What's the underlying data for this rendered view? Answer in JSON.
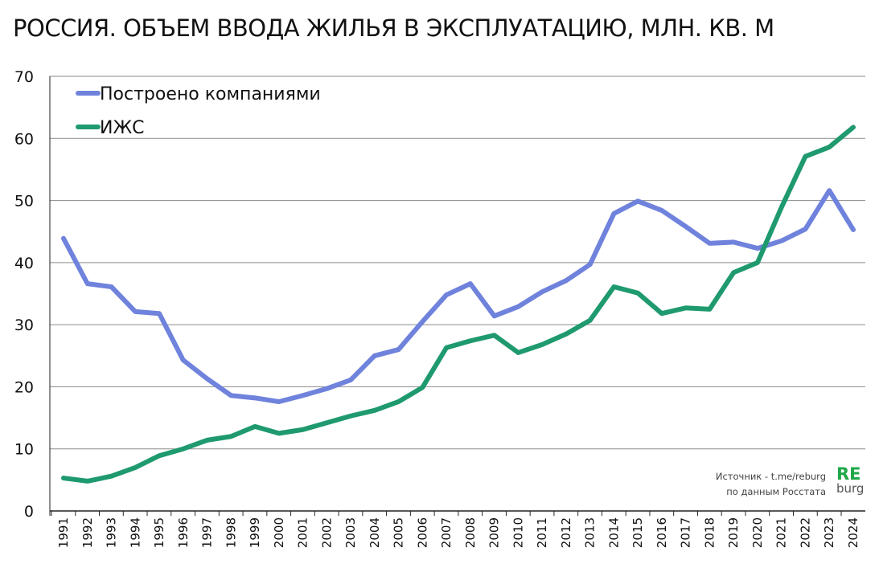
{
  "title": "РОССИЯ. ОБЪЕМ ВВОДА  ЖИЛЬЯ В ЭКСПЛУАТАЦИЮ, МЛН. КВ. М",
  "source": {
    "line1": "Источник - t.me/reburg",
    "line2": "по данным Росстата"
  },
  "logo": {
    "top": "RE",
    "bottom": "burg"
  },
  "chart_data": {
    "type": "line",
    "title": "РОССИЯ. ОБЪЕМ ВВОДА  ЖИЛЬЯ В ЭКСПЛУАТАЦИЮ, МЛН. КВ. М",
    "xlabel": "",
    "ylabel": "",
    "ylim": [
      0,
      70
    ],
    "yticks": [
      0,
      10,
      20,
      30,
      40,
      50,
      60,
      70
    ],
    "grid": true,
    "legend": "top-left",
    "x": [
      1991,
      1992,
      1993,
      1994,
      1995,
      1996,
      1997,
      1998,
      1999,
      2000,
      2001,
      2002,
      2003,
      2004,
      2005,
      2006,
      2007,
      2008,
      2009,
      2010,
      2011,
      2012,
      2013,
      2014,
      2015,
      2016,
      2017,
      2018,
      2019,
      2020,
      2021,
      2022,
      2023,
      2024
    ],
    "series": [
      {
        "name": "Построено компаниями",
        "color": "#6f82dc",
        "values": [
          43.9,
          36.6,
          36.1,
          32.1,
          31.8,
          24.3,
          21.3,
          18.6,
          18.2,
          17.6,
          18.6,
          19.7,
          21.1,
          25.0,
          26.0,
          30.5,
          34.8,
          36.6,
          31.4,
          32.9,
          35.3,
          37.1,
          39.7,
          47.9,
          49.9,
          48.4,
          45.8,
          43.1,
          43.3,
          42.3,
          43.5,
          45.4,
          51.6,
          45.3
        ]
      },
      {
        "name": "ИЖС",
        "color": "#1f9a6e",
        "values": [
          5.3,
          4.8,
          5.6,
          7.0,
          8.9,
          10.0,
          11.4,
          12.0,
          13.6,
          12.5,
          13.1,
          14.2,
          15.3,
          16.2,
          17.6,
          19.9,
          26.3,
          27.4,
          28.3,
          25.5,
          26.8,
          28.5,
          30.7,
          36.1,
          35.1,
          31.8,
          32.7,
          32.5,
          38.4,
          40.0,
          48.9,
          57.1,
          58.6,
          61.8
        ]
      }
    ]
  }
}
